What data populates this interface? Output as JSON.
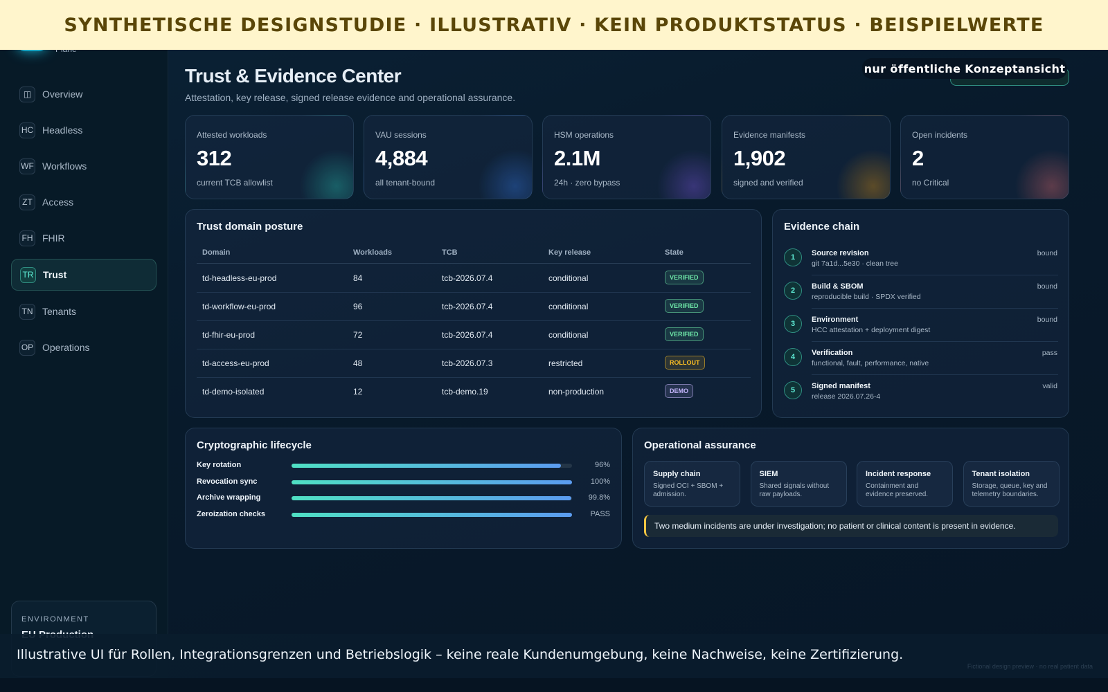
{
  "banner": "SYNTHETISCHE DESIGNSTUDIE · ILLUSTRATIV · KEIN PRODUKTSTATUS · BEISPIELWERTE",
  "sidebar": {
    "brand_sub": "Plane",
    "nav": [
      {
        "icon": "◫",
        "label": "Overview"
      },
      {
        "icon": "HC",
        "label": "Headless"
      },
      {
        "icon": "WF",
        "label": "Workflows"
      },
      {
        "icon": "ZT",
        "label": "Access"
      },
      {
        "icon": "FH",
        "label": "FHIR"
      },
      {
        "icon": "TR",
        "label": "Trust",
        "active": true
      },
      {
        "icon": "TN",
        "label": "Tenants"
      },
      {
        "icon": "OP",
        "label": "Operations"
      }
    ],
    "environment": {
      "label": "ENVIRONMENT",
      "name": "EU Production"
    }
  },
  "header": {
    "title": "Trust & Evidence Center",
    "subtitle": "Attestation, key release, signed release evidence and operational assurance.",
    "badge": "nur öffentliche Konzeptansicht"
  },
  "stats": [
    {
      "label": "Attested workloads",
      "value": "312",
      "note": "current TCB allowlist",
      "color": "#2dd4bf"
    },
    {
      "label": "VAU sessions",
      "value": "4,884",
      "note": "all tenant-bound",
      "color": "#3b82f6"
    },
    {
      "label": "HSM operations",
      "value": "2.1M",
      "note": "24h · zero bypass",
      "color": "#8b5cf6"
    },
    {
      "label": "Evidence manifests",
      "value": "1,902",
      "note": "signed and verified",
      "color": "#f59e0b"
    },
    {
      "label": "Open incidents",
      "value": "2",
      "note": "no Critical",
      "color": "#f87171"
    }
  ],
  "table": {
    "title": "Trust domain posture",
    "columns": [
      "Domain",
      "Workloads",
      "TCB",
      "Key release",
      "State"
    ],
    "rows": [
      {
        "domain": "td-headless-eu-prod",
        "workloads": 84,
        "tcb": "tcb-2026.07.4",
        "key_release": "conditional",
        "state": "VERIFIED",
        "state_color": "#6ee7a8"
      },
      {
        "domain": "td-workflow-eu-prod",
        "workloads": 96,
        "tcb": "tcb-2026.07.4",
        "key_release": "conditional",
        "state": "VERIFIED",
        "state_color": "#6ee7a8"
      },
      {
        "domain": "td-fhir-eu-prod",
        "workloads": 72,
        "tcb": "tcb-2026.07.4",
        "key_release": "conditional",
        "state": "VERIFIED",
        "state_color": "#6ee7a8"
      },
      {
        "domain": "td-access-eu-prod",
        "workloads": 48,
        "tcb": "tcb-2026.07.3",
        "key_release": "restricted",
        "state": "ROLLOUT",
        "state_color": "#fbbf24"
      },
      {
        "domain": "td-demo-isolated",
        "workloads": 12,
        "tcb": "tcb-demo.19",
        "key_release": "non-production",
        "state": "DEMO",
        "state_color": "#c4b5fd"
      }
    ]
  },
  "evidence": {
    "title": "Evidence chain",
    "steps": [
      {
        "num": "1",
        "title": "Source revision",
        "detail": "git 7a1d...5e30 · clean tree",
        "status": "bound"
      },
      {
        "num": "2",
        "title": "Build & SBOM",
        "detail": "reproducible build · SPDX verified",
        "status": "bound"
      },
      {
        "num": "3",
        "title": "Environment",
        "detail": "HCC attestation + deployment digest",
        "status": "bound"
      },
      {
        "num": "4",
        "title": "Verification",
        "detail": "functional, fault, performance, native",
        "status": "pass"
      },
      {
        "num": "5",
        "title": "Signed manifest",
        "detail": "release 2026.07.26-4",
        "status": "valid"
      }
    ]
  },
  "lifecycle": {
    "title": "Cryptographic lifecycle",
    "xlim": [
      0,
      100
    ],
    "items": [
      {
        "name": "Key rotation",
        "value": 96,
        "label": "96%"
      },
      {
        "name": "Revocation sync",
        "value": 100,
        "label": "100%"
      },
      {
        "name": "Archive wrapping",
        "value": 99.8,
        "label": "99.8%"
      },
      {
        "name": "Zeroization checks",
        "label": "PASS"
      }
    ]
  },
  "assurance": {
    "title": "Operational assurance",
    "cards": [
      {
        "title": "Supply chain",
        "text": "Signed OCI + SBOM + admission."
      },
      {
        "title": "SIEM",
        "text": "Shared signals without raw payloads."
      },
      {
        "title": "Incident response",
        "text": "Containment and evidence preserved."
      },
      {
        "title": "Tenant isolation",
        "text": "Storage, queue, key and telemetry boundaries."
      }
    ],
    "notice": "Two medium incidents are under investigation; no patient or clinical content is present in evidence."
  },
  "footer": {
    "note": "Illustrative UI für Rollen, Integrationsgrenzen und Betriebslogik – keine reale Kundenumgebung, keine Nachweise, keine Zertifizierung.",
    "watermark": "Fictional design preview · no real patient data"
  }
}
